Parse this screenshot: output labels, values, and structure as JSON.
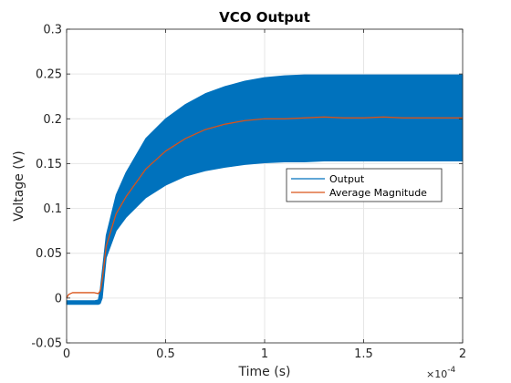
{
  "chart_data": {
    "type": "line",
    "title": "VCO Output",
    "xlabel": "Time (s)",
    "ylabel": "Voltage (V)",
    "x_exponent_label": "×10",
    "x_exponent_power": "-4",
    "x_scale_factor": 0.0001,
    "xlim": [
      0,
      2
    ],
    "ylim": [
      -0.05,
      0.3
    ],
    "xticks": [
      0,
      0.5,
      1,
      1.5,
      2
    ],
    "xtick_labels": [
      "0",
      "0.5",
      "1",
      "1.5",
      "2"
    ],
    "yticks": [
      -0.05,
      0,
      0.05,
      0.1,
      0.15,
      0.2,
      0.25,
      0.3
    ],
    "ytick_labels": [
      "-0.05",
      "0",
      "0.05",
      "0.1",
      "0.15",
      "0.2",
      "0.25",
      "0.3"
    ],
    "grid": true,
    "legend_position": "right",
    "series": [
      {
        "name": "Output",
        "color": "#0072BD",
        "style": "dense-oscillation-band",
        "x": [
          0,
          0.1,
          0.14,
          0.16,
          0.17,
          0.18,
          0.2,
          0.25,
          0.3,
          0.4,
          0.5,
          0.6,
          0.7,
          0.8,
          0.9,
          1.0,
          1.1,
          1.2,
          1.3,
          1.4,
          1.5,
          1.6,
          1.7,
          1.8,
          1.9,
          2.0
        ],
        "upper": [
          -0.003,
          -0.003,
          -0.003,
          -0.002,
          0.01,
          0.03,
          0.07,
          0.115,
          0.14,
          0.178,
          0.2,
          0.216,
          0.228,
          0.236,
          0.242,
          0.246,
          0.248,
          0.249,
          0.249,
          0.249,
          0.249,
          0.249,
          0.249,
          0.249,
          0.249,
          0.249
        ],
        "lower": [
          -0.007,
          -0.007,
          -0.007,
          -0.007,
          -0.006,
          0.0,
          0.045,
          0.075,
          0.09,
          0.112,
          0.126,
          0.136,
          0.142,
          0.146,
          0.149,
          0.151,
          0.152,
          0.152,
          0.153,
          0.153,
          0.153,
          0.153,
          0.153,
          0.153,
          0.153,
          0.153
        ]
      },
      {
        "name": "Average Magnitude",
        "color": "#D95319",
        "x": [
          0,
          0.01,
          0.03,
          0.05,
          0.1,
          0.14,
          0.16,
          0.17,
          0.18,
          0.2,
          0.25,
          0.3,
          0.4,
          0.5,
          0.6,
          0.7,
          0.8,
          0.9,
          1.0,
          1.1,
          1.2,
          1.3,
          1.4,
          1.5,
          1.6,
          1.7,
          1.8,
          1.9,
          2.0
        ],
        "y": [
          0.0,
          0.004,
          0.006,
          0.006,
          0.006,
          0.006,
          0.005,
          0.008,
          0.02,
          0.058,
          0.094,
          0.113,
          0.144,
          0.164,
          0.178,
          0.188,
          0.194,
          0.198,
          0.2,
          0.2,
          0.201,
          0.202,
          0.201,
          0.201,
          0.202,
          0.201,
          0.201,
          0.201,
          0.201
        ]
      }
    ]
  }
}
